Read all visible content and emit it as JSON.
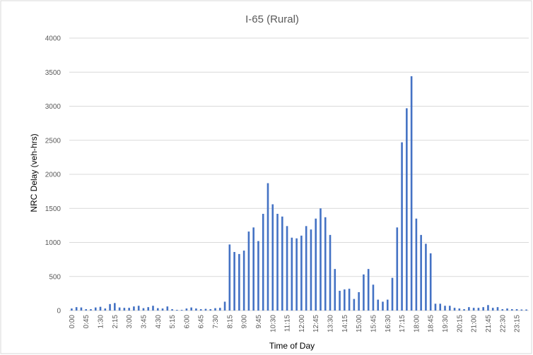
{
  "chart_data": {
    "type": "bar",
    "title": "I-65 (Rural)",
    "x_label": "Time of Day",
    "y_label": "NRC Delay (veh-hrs)",
    "categories": [
      "0:00",
      null,
      null,
      "0:45",
      null,
      null,
      "1:30",
      null,
      null,
      "2:15",
      null,
      null,
      "3:00",
      null,
      null,
      "3:45",
      null,
      null,
      "4:30",
      null,
      null,
      "5:15",
      null,
      null,
      "6:00",
      null,
      null,
      "6:45",
      null,
      null,
      "7:30",
      null,
      null,
      "8:15",
      null,
      null,
      "9:00",
      null,
      null,
      "9:45",
      null,
      null,
      "10:30",
      null,
      null,
      "11:15",
      null,
      null,
      "12:00",
      null,
      null,
      "12:45",
      null,
      null,
      "13:30",
      null,
      null,
      "14:15",
      null,
      null,
      "15:00",
      null,
      null,
      "15:45",
      null,
      null,
      "16:30",
      null,
      null,
      "17:15",
      null,
      null,
      "18:00",
      null,
      null,
      "18:45",
      null,
      null,
      "19:30",
      null,
      null,
      "20:15",
      null,
      null,
      "21:00",
      null,
      null,
      "21:45",
      null,
      null,
      "22:30",
      null,
      null,
      "23:15",
      null,
      null
    ],
    "values": [
      30,
      50,
      45,
      20,
      20,
      45,
      55,
      30,
      95,
      110,
      45,
      40,
      40,
      60,
      70,
      35,
      50,
      70,
      35,
      30,
      60,
      20,
      10,
      10,
      30,
      45,
      30,
      20,
      25,
      20,
      35,
      40,
      130,
      970,
      860,
      830,
      880,
      1160,
      1220,
      1020,
      1420,
      1870,
      1560,
      1420,
      1380,
      1240,
      1070,
      1060,
      1100,
      1240,
      1190,
      1350,
      1500,
      1370,
      1110,
      610,
      290,
      310,
      320,
      170,
      270,
      530,
      610,
      380,
      160,
      130,
      160,
      480,
      1220,
      2470,
      2970,
      3440,
      1350,
      1110,
      980,
      840,
      100,
      100,
      70,
      70,
      40,
      30,
      20,
      50,
      40,
      40,
      50,
      80,
      40,
      50,
      20,
      30,
      20,
      20,
      15,
      15
    ],
    "color": "#4472c4",
    "ylim": [
      0,
      4000
    ],
    "yticks": [
      0,
      500,
      1000,
      1500,
      2000,
      2500,
      3000,
      3500,
      4000
    ],
    "grid": true
  }
}
